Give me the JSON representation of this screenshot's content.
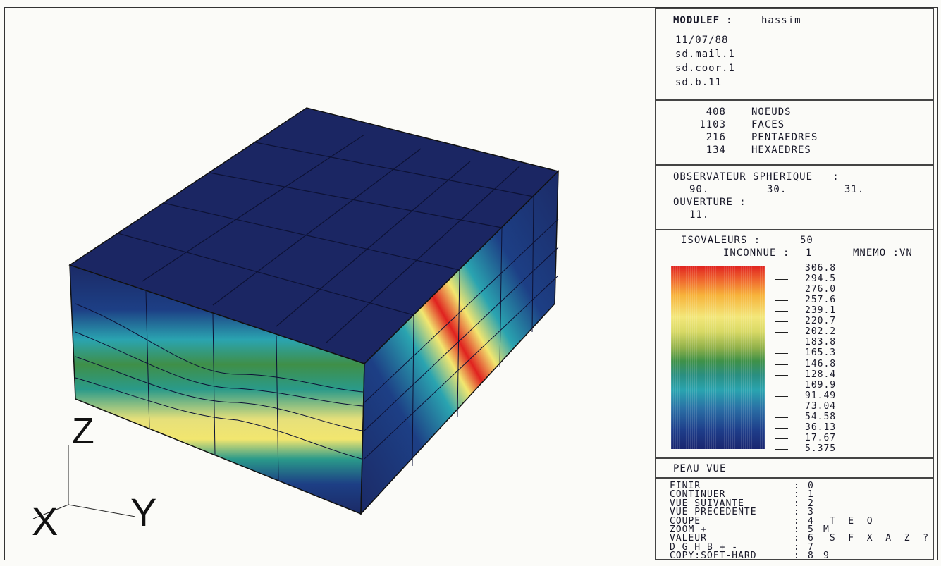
{
  "header": {
    "app": "MODULEF",
    "separator": ":",
    "user": "hassim",
    "date": "11/07/88",
    "files": [
      "sd.mail.1",
      "sd.coor.1",
      "sd.b.11"
    ]
  },
  "stats": [
    {
      "value": "408",
      "label": "NOEUDS"
    },
    {
      "value": "1103",
      "label": "FACES"
    },
    {
      "value": "216",
      "label": "PENTAEDRES"
    },
    {
      "value": "134",
      "label": "HEXAEDRES"
    }
  ],
  "observer": {
    "title": "OBSERVATEUR SPHERIQUE   :",
    "values": [
      "90.",
      "30.",
      "31."
    ],
    "aperture_label": "OUVERTURE :",
    "aperture_value": "11."
  },
  "legend": {
    "isovaleurs_label": "ISOVALEURS :",
    "isovaleurs_value": "50",
    "inconnue_label": "INCONNUE :",
    "inconnue_value": "1",
    "mnemo_label": "MNEMO :VN",
    "levels": [
      "306.8",
      "294.5",
      "276.0",
      "257.6",
      "239.1",
      "220.7",
      "202.2",
      "183.8",
      "165.3",
      "146.8",
      "128.4",
      "109.9",
      "91.49",
      "73.04",
      "54.58",
      "36.13",
      "17.67",
      "5.375"
    ]
  },
  "view_mode": "PEAU VUE",
  "menu": [
    {
      "label": "FINIR",
      "key": "0",
      "extra": ""
    },
    {
      "label": "CONTINUER",
      "key": "1",
      "extra": ""
    },
    {
      "label": "VUE SUIVANTE",
      "key": "2",
      "extra": ""
    },
    {
      "label": "VUE PRECEDENTE",
      "key": "3",
      "extra": ""
    },
    {
      "label": "COUPE",
      "key": "4",
      "extra": " T  E  Q"
    },
    {
      "label": "ZOOM +",
      "key": "5",
      "extra": "M"
    },
    {
      "label": "VALEUR",
      "key": "6",
      "extra": " S  F  X  A  Z  ?"
    },
    {
      "label": "D G H B + -",
      "key": "7",
      "extra": ""
    },
    {
      "label": "COPY:SOFT-HARD",
      "key": "8",
      "extra": "9"
    }
  ],
  "axes": {
    "x": "X",
    "y": "Y",
    "z": "Z"
  },
  "colors": {
    "dark_blue": "#1b2a66",
    "cyan": "#2aa4b0",
    "green": "#3f9148",
    "yellow": "#f3e77a",
    "red": "#e0221f"
  }
}
